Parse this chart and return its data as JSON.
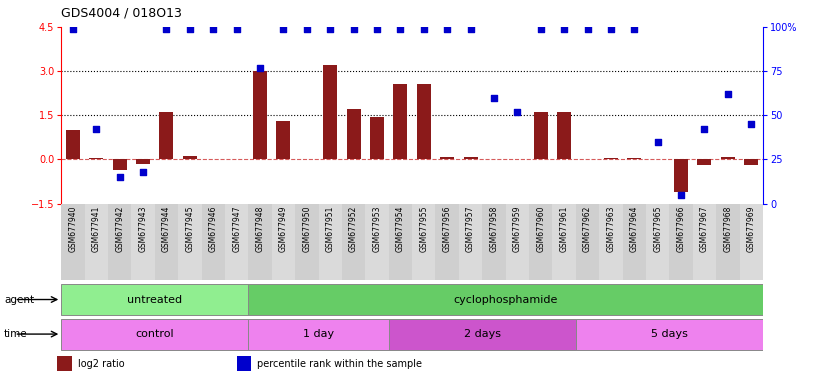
{
  "title": "GDS4004 / 018O13",
  "samples": [
    "GSM677940",
    "GSM677941",
    "GSM677942",
    "GSM677943",
    "GSM677944",
    "GSM677945",
    "GSM677946",
    "GSM677947",
    "GSM677948",
    "GSM677949",
    "GSM677950",
    "GSM677951",
    "GSM677952",
    "GSM677953",
    "GSM677954",
    "GSM677955",
    "GSM677956",
    "GSM677957",
    "GSM677958",
    "GSM677959",
    "GSM677960",
    "GSM677961",
    "GSM677962",
    "GSM677963",
    "GSM677964",
    "GSM677965",
    "GSM677966",
    "GSM677967",
    "GSM677968",
    "GSM677969"
  ],
  "log2_ratio": [
    1.0,
    0.05,
    -0.35,
    -0.15,
    1.62,
    0.12,
    0.0,
    0.0,
    3.0,
    1.3,
    0.0,
    3.2,
    1.7,
    1.45,
    2.55,
    2.55,
    0.08,
    0.08,
    0.0,
    0.0,
    1.6,
    1.62,
    0.0,
    0.05,
    0.05,
    0.0,
    -1.1,
    -0.18,
    0.08,
    -0.18
  ],
  "percentile": [
    99,
    42,
    15,
    18,
    99,
    99,
    99,
    99,
    77,
    99,
    99,
    99,
    99,
    99,
    99,
    99,
    99,
    99,
    60,
    52,
    99,
    99,
    99,
    99,
    99,
    35,
    5,
    42,
    62,
    45
  ],
  "agent_groups": [
    {
      "label": "untreated",
      "start": 0,
      "end": 8,
      "color": "#90EE90"
    },
    {
      "label": "cyclophosphamide",
      "start": 8,
      "end": 30,
      "color": "#66CC66"
    }
  ],
  "time_groups": [
    {
      "label": "control",
      "start": 0,
      "end": 8,
      "color": "#EE82EE"
    },
    {
      "label": "1 day",
      "start": 8,
      "end": 14,
      "color": "#EE82EE"
    },
    {
      "label": "2 days",
      "start": 14,
      "end": 22,
      "color": "#CC55CC"
    },
    {
      "label": "5 days",
      "start": 22,
      "end": 30,
      "color": "#EE82EE"
    }
  ],
  "ylim_left": [
    -1.5,
    4.5
  ],
  "ylim_right": [
    0,
    100
  ],
  "yticks_left": [
    -1.5,
    0,
    1.5,
    3.0,
    4.5
  ],
  "yticks_right": [
    0,
    25,
    50,
    75,
    100
  ],
  "bar_color": "#8B1A1A",
  "dot_color": "#0000CC",
  "bg_color": "#FFFFFF",
  "xtick_bg": "#D8D8D8",
  "legend_items": [
    {
      "color": "#8B1A1A",
      "label": "log2 ratio"
    },
    {
      "color": "#0000CC",
      "label": "percentile rank within the sample"
    }
  ]
}
